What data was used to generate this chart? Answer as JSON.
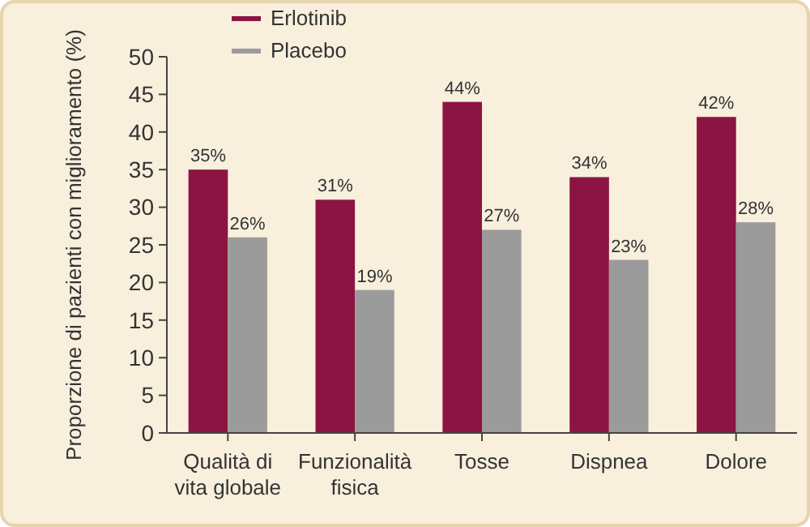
{
  "chart_data": {
    "type": "bar",
    "ylabel": "Proporzione di pazienti con miglioramento (%)",
    "categories": [
      "Qualità di vita globale",
      "Funzionalità fisica",
      "Tosse",
      "Dispnea",
      "Dolore"
    ],
    "series": [
      {
        "name": "Erlotinib",
        "color": "#8c1442",
        "values": [
          35,
          31,
          44,
          34,
          42
        ],
        "value_labels": [
          "35%",
          "31%",
          "44%",
          "34%",
          "42%"
        ]
      },
      {
        "name": "Placebo",
        "color": "#9b9b9b",
        "values": [
          26,
          19,
          27,
          23,
          28
        ],
        "value_labels": [
          "26%",
          "19%",
          "27%",
          "23%",
          "28%"
        ]
      }
    ],
    "ylim": [
      0,
      50
    ],
    "yticks": [
      0,
      5,
      10,
      15,
      20,
      25,
      30,
      35,
      40,
      45,
      50
    ],
    "grid": false,
    "legend": "top left"
  }
}
